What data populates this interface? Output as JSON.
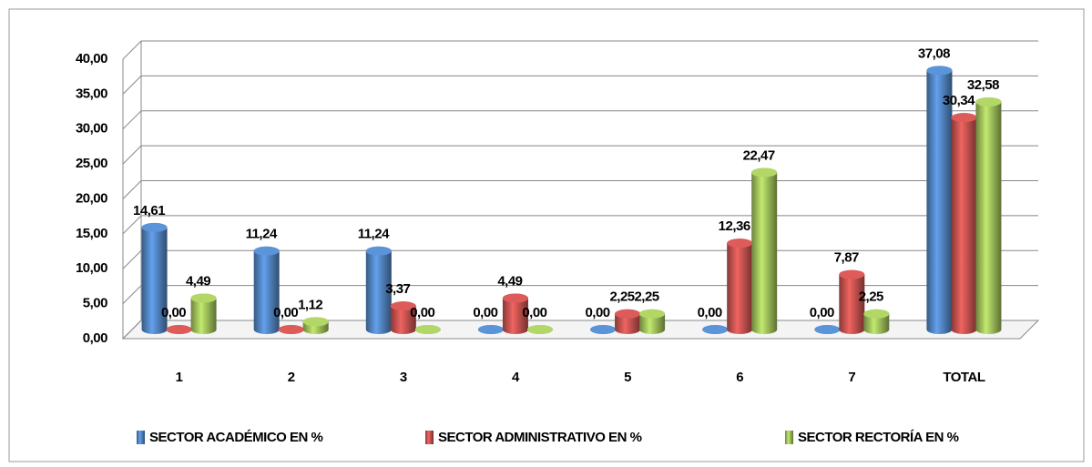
{
  "chart_data": {
    "type": "bar",
    "categories": [
      "1",
      "2",
      "3",
      "4",
      "5",
      "6",
      "7",
      "TOTAL"
    ],
    "series": [
      {
        "name": "SECTOR ACADÉMICO EN %",
        "color": "#4f81bd",
        "values": [
          14.61,
          11.24,
          11.24,
          0,
          0,
          0,
          0,
          37.08
        ],
        "value_labels": [
          "14,61",
          "11,24",
          "11,24",
          "0,00",
          "0,00",
          "0,00",
          "0,00",
          "37,08"
        ]
      },
      {
        "name": "SECTOR ADMINISTRATIVO EN %",
        "color": "#c0504d",
        "values": [
          0,
          0,
          3.37,
          4.49,
          2.25,
          12.36,
          7.87,
          30.34
        ],
        "value_labels": [
          "0,00",
          "0,00",
          "3,37",
          "4,49",
          "2,25",
          "12,36",
          "7,87",
          "30,34"
        ]
      },
      {
        "name": "SECTOR RECTORÍA EN %",
        "color": "#9bbb59",
        "values": [
          4.49,
          1.12,
          0,
          0,
          2.25,
          22.47,
          2.25,
          32.58
        ],
        "value_labels": [
          "4,49",
          "1,12",
          "0,00",
          "0,00",
          "2,25",
          "22,47",
          "2,25",
          "32,58"
        ]
      }
    ],
    "ylim": [
      0,
      40
    ],
    "yticks": [
      {
        "value": 0,
        "label": "0,00"
      },
      {
        "value": 5,
        "label": "5,00"
      },
      {
        "value": 10,
        "label": "10,00"
      },
      {
        "value": 15,
        "label": "15,00"
      },
      {
        "value": 20,
        "label": "20,00"
      },
      {
        "value": 25,
        "label": "25,00"
      },
      {
        "value": 30,
        "label": "30,00"
      },
      {
        "value": 35,
        "label": "35,00"
      },
      {
        "value": 40,
        "label": "40,00"
      }
    ],
    "grid": true,
    "legend": "bottom"
  }
}
